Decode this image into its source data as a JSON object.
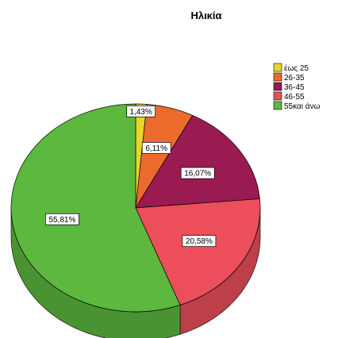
{
  "chart_data": {
    "type": "pie",
    "title": "Ηλικία",
    "legend_position": "top-right",
    "three_d": true,
    "categories": [
      "έως 25",
      "26-35",
      "36-45",
      "46-55",
      "55και άνω"
    ],
    "values": [
      1.43,
      6.11,
      16.07,
      20.58,
      55.81
    ],
    "value_labels": [
      "1,43%",
      "6,11%",
      "16,07%",
      "20,58%",
      "55,81%"
    ],
    "colors": [
      "#e8d62a",
      "#ec6b2c",
      "#9a1a52",
      "#ec4f5b",
      "#5cb83e"
    ]
  }
}
